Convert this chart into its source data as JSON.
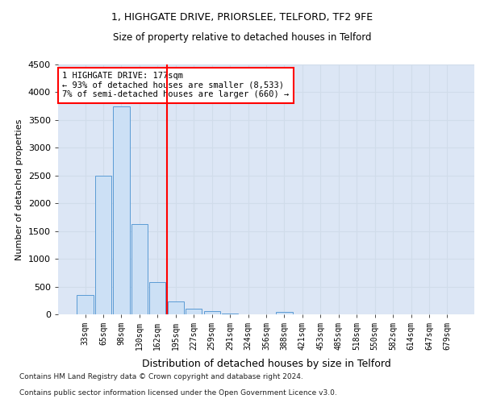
{
  "title1": "1, HIGHGATE DRIVE, PRIORSLEE, TELFORD, TF2 9FE",
  "title2": "Size of property relative to detached houses in Telford",
  "xlabel": "Distribution of detached houses by size in Telford",
  "ylabel": "Number of detached properties",
  "categories": [
    "33sqm",
    "65sqm",
    "98sqm",
    "130sqm",
    "162sqm",
    "195sqm",
    "227sqm",
    "259sqm",
    "291sqm",
    "324sqm",
    "356sqm",
    "388sqm",
    "421sqm",
    "453sqm",
    "485sqm",
    "518sqm",
    "550sqm",
    "582sqm",
    "614sqm",
    "647sqm",
    "679sqm"
  ],
  "values": [
    350,
    2500,
    3750,
    1625,
    575,
    230,
    105,
    55,
    20,
    0,
    0,
    50,
    0,
    0,
    0,
    0,
    0,
    0,
    0,
    0,
    0
  ],
  "bar_color": "#cce0f5",
  "bar_edge_color": "#5b9bd5",
  "vline_x": 4.5,
  "vline_color": "red",
  "annotation_text": "1 HIGHGATE DRIVE: 177sqm\n← 93% of detached houses are smaller (8,533)\n7% of semi-detached houses are larger (660) →",
  "annotation_box_color": "white",
  "annotation_box_edge_color": "red",
  "ylim": [
    0,
    4500
  ],
  "yticks": [
    0,
    500,
    1000,
    1500,
    2000,
    2500,
    3000,
    3500,
    4000,
    4500
  ],
  "footnote_line1": "Contains HM Land Registry data © Crown copyright and database right 2024.",
  "footnote_line2": "Contains public sector information licensed under the Open Government Licence v3.0.",
  "grid_color": "#d0dcea",
  "background_color": "#dce6f5",
  "fig_background": "#ffffff"
}
